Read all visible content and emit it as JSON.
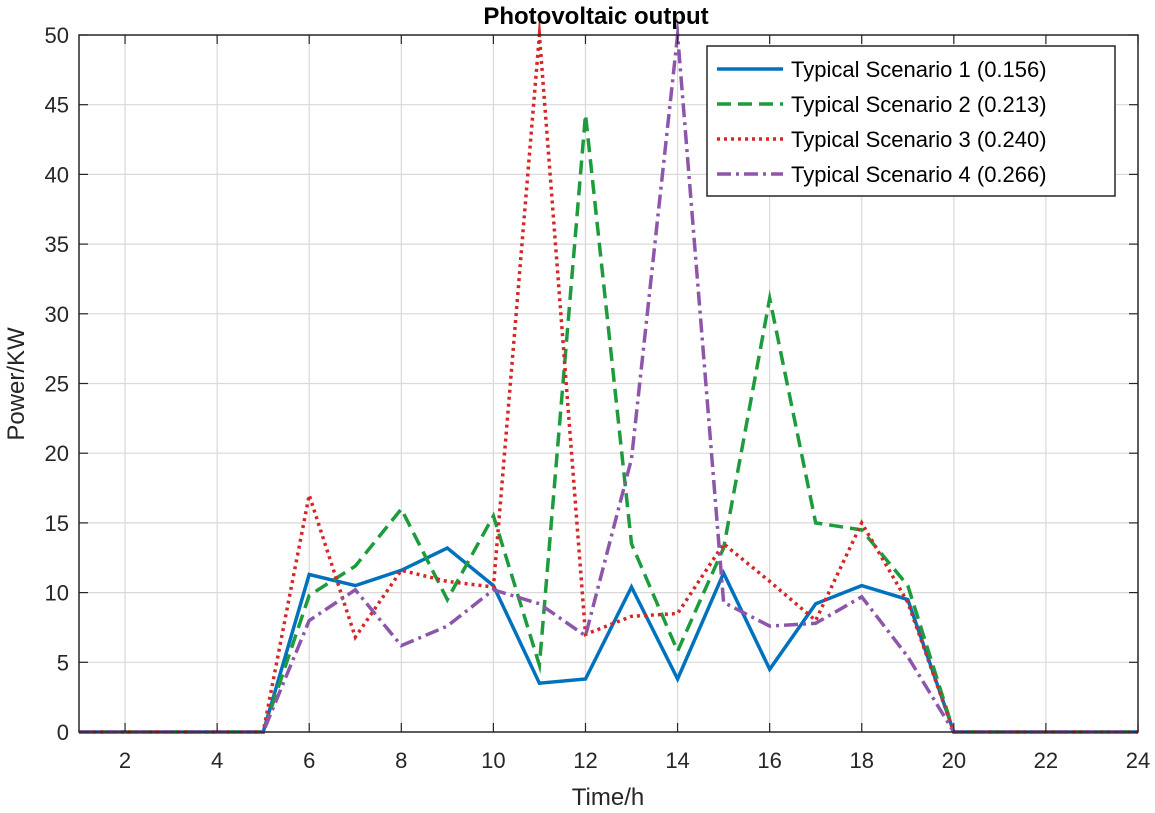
{
  "chart_data": {
    "type": "line",
    "title": "Photovoltaic output",
    "xlabel": "Time/h",
    "ylabel": "Power/KW",
    "xlim": [
      1,
      24
    ],
    "ylim": [
      0,
      50
    ],
    "grid": true,
    "legend_position": "top-right",
    "x": [
      1,
      2,
      3,
      4,
      5,
      6,
      7,
      8,
      9,
      10,
      11,
      12,
      13,
      14,
      15,
      16,
      17,
      18,
      19,
      20,
      21,
      22,
      23,
      24
    ],
    "xticks": [
      2,
      4,
      6,
      8,
      10,
      12,
      14,
      16,
      18,
      20,
      22,
      24
    ],
    "yticks": [
      0,
      5,
      10,
      15,
      20,
      25,
      30,
      35,
      40,
      45,
      50
    ],
    "series": [
      {
        "name": "Typical Scenario 1 (0.156)",
        "color": "#0072BD",
        "style": "solid",
        "values": [
          0,
          0,
          0,
          0,
          0,
          11.3,
          10.5,
          11.6,
          13.2,
          10.5,
          3.5,
          3.8,
          10.4,
          3.8,
          11.4,
          4.5,
          9.2,
          10.5,
          9.5,
          0,
          0,
          0,
          0,
          0
        ]
      },
      {
        "name": "Typical Scenario 2 (0.213)",
        "color": "#1E9B3C",
        "style": "dashed",
        "values": [
          0,
          0,
          0,
          0,
          0,
          9.8,
          11.9,
          16.0,
          9.5,
          15.5,
          4.8,
          44.3,
          13.5,
          5.8,
          13.2,
          31.1,
          15.0,
          14.5,
          10.5,
          0,
          0,
          0,
          0,
          0
        ]
      },
      {
        "name": "Typical Scenario 3 (0.240)",
        "color": "#D62728",
        "style": "dotted",
        "values": [
          0,
          0,
          0,
          0,
          0,
          17.0,
          6.8,
          11.6,
          10.8,
          10.4,
          50.0,
          7.0,
          8.3,
          8.5,
          13.5,
          10.8,
          8.0,
          15.0,
          9.3,
          0,
          0,
          0,
          0,
          0
        ]
      },
      {
        "name": "Typical Scenario 4 (0.266)",
        "color": "#8E56AA",
        "style": "dashdot",
        "values": [
          0,
          0,
          0,
          0,
          0,
          8.0,
          10.2,
          6.2,
          7.6,
          10.2,
          9.2,
          6.9,
          19.6,
          50.0,
          9.3,
          7.6,
          7.8,
          9.7,
          5.4,
          0,
          0,
          0,
          0,
          0
        ]
      }
    ]
  }
}
